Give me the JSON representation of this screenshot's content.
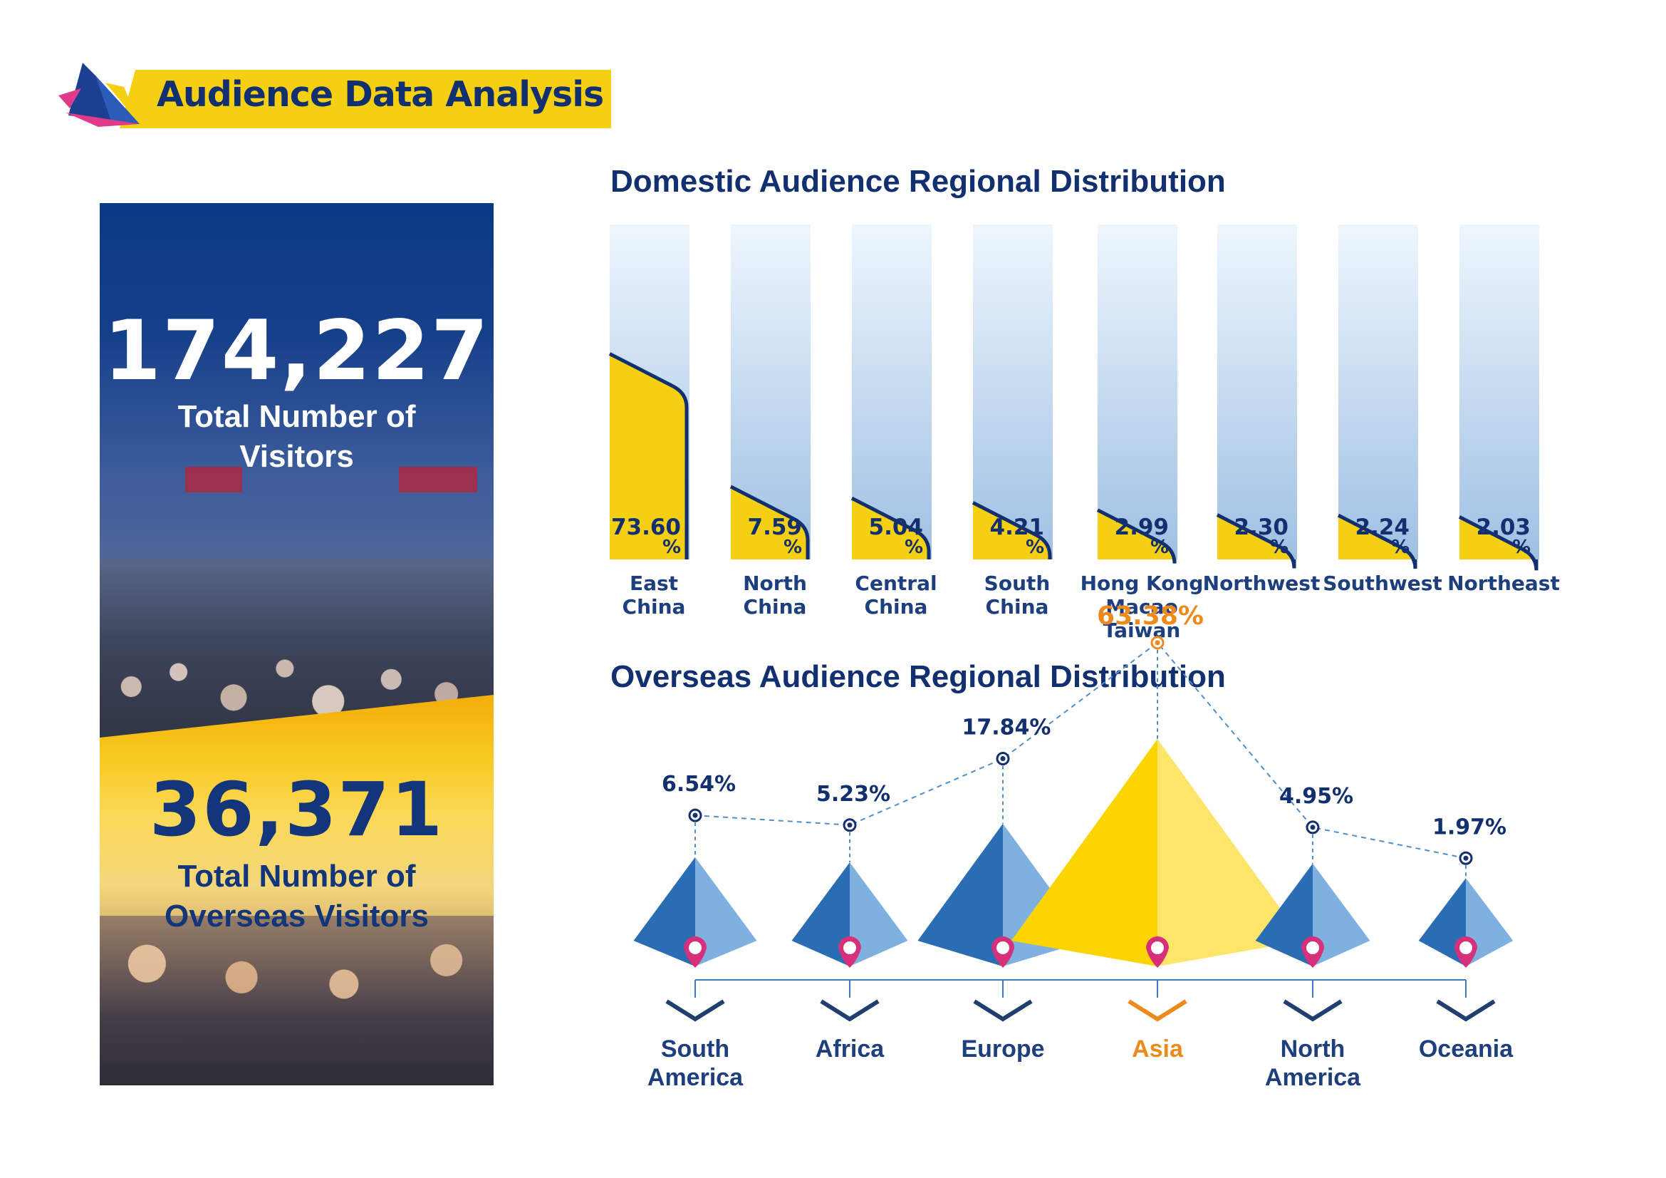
{
  "header": {
    "title": "Audience Data Analysis"
  },
  "stats": {
    "total_visitors": "174,227",
    "total_visitors_label_line1": "Total Number of",
    "total_visitors_label_line2": "Visitors",
    "overseas_visitors": "36,371",
    "overseas_label_line1": "Total Number of",
    "overseas_label_line2": "Overseas Visitors"
  },
  "colors": {
    "navy": "#12306f",
    "yellow": "#f5cf12",
    "pyramid_dark": "#2a6db3",
    "pyramid_light": "#7eb1e0",
    "highlight": "#ee8a1b",
    "pin": "#d6307a"
  },
  "chart_data": [
    {
      "type": "bar",
      "title": "Domestic Audience Regional Distribution",
      "unit": "%",
      "categories": [
        [
          "East",
          "China"
        ],
        [
          "North",
          "China"
        ],
        [
          "Central",
          "China"
        ],
        [
          "South",
          "China"
        ],
        [
          "Hong Kong",
          "Macao",
          "Taiwan"
        ],
        [
          "Northwest"
        ],
        [
          "Southwest"
        ],
        [
          "Northeast"
        ]
      ],
      "values": [
        73.6,
        7.59,
        5.04,
        4.21,
        2.99,
        2.3,
        2.24,
        2.03
      ],
      "value_labels": [
        "73.60",
        "7.59",
        "5.04",
        "4.21",
        "2.99",
        "2.30",
        "2.24",
        "2.03"
      ]
    },
    {
      "type": "line",
      "title": "Overseas Audience Regional Distribution",
      "unit": "%",
      "categories": [
        [
          "South",
          "America"
        ],
        [
          "Africa"
        ],
        [
          "Europe"
        ],
        [
          "Asia"
        ],
        [
          "North",
          "America"
        ],
        [
          "Oceania"
        ]
      ],
      "values": [
        6.54,
        5.23,
        17.84,
        63.38,
        4.95,
        1.97
      ],
      "value_labels": [
        "6.54%",
        "5.23%",
        "17.84%",
        "63.38%",
        "4.95%",
        "1.97%"
      ],
      "highlight": "Asia"
    }
  ]
}
